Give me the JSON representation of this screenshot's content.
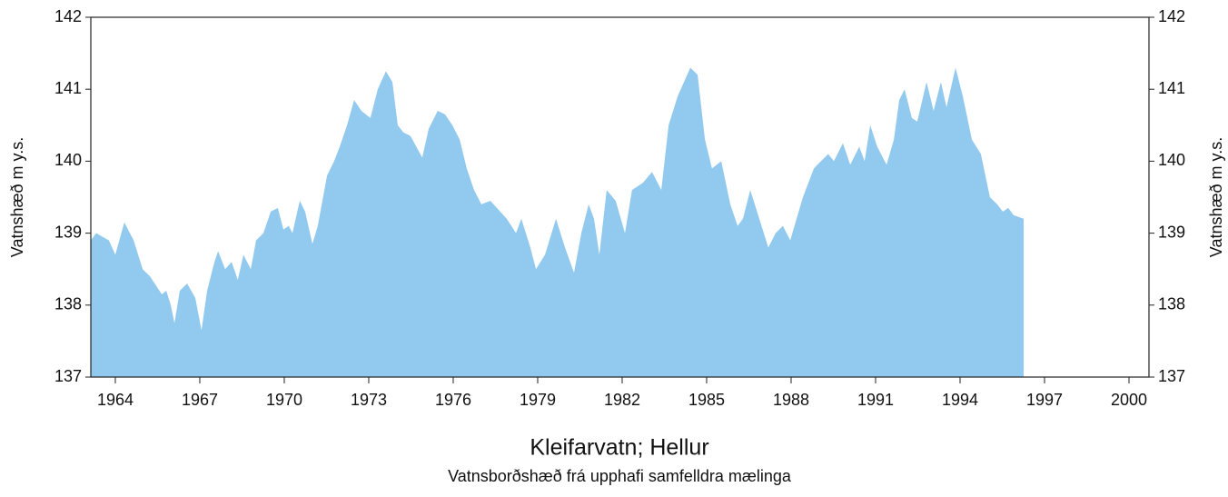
{
  "chart_data": {
    "type": "area",
    "title": "Kleifarvatn; Hellur",
    "subtitle": "Vatnsborðshæð frá upphafi samfelldra mælinga",
    "y_label": "Vatnshæð  m y.s.",
    "y2_label": "Vatnshæð  m y.s.",
    "xlim": [
      1963.13,
      2000.71
    ],
    "xticks": [
      1964,
      1967,
      1970,
      1973,
      1976,
      1979,
      1982,
      1985,
      1988,
      1991,
      1994,
      1997,
      2000
    ],
    "ylim": [
      137,
      142
    ],
    "yticks": [
      137,
      138,
      139,
      140,
      141,
      142
    ],
    "y2lim": [
      137,
      142
    ],
    "y2ticks": [
      137,
      138,
      139,
      140,
      141,
      142
    ],
    "color": "#92c9ee",
    "x": [
      1963.13,
      1963.32,
      1963.77,
      1964.0,
      1964.32,
      1964.65,
      1964.97,
      1965.23,
      1965.65,
      1965.81,
      1965.97,
      1966.1,
      1966.29,
      1966.55,
      1966.84,
      1967.06,
      1967.26,
      1967.52,
      1967.65,
      1967.9,
      1968.13,
      1968.35,
      1968.55,
      1968.81,
      1969.0,
      1969.26,
      1969.52,
      1969.77,
      1969.97,
      1970.16,
      1970.29,
      1970.55,
      1970.74,
      1971.0,
      1971.19,
      1971.52,
      1971.77,
      1971.97,
      1972.23,
      1972.48,
      1972.74,
      1973.06,
      1973.32,
      1973.61,
      1973.84,
      1974.03,
      1974.23,
      1974.48,
      1974.9,
      1975.13,
      1975.45,
      1975.71,
      1975.97,
      1976.23,
      1976.48,
      1976.74,
      1977.0,
      1977.32,
      1977.9,
      1978.23,
      1978.42,
      1978.74,
      1978.94,
      1979.26,
      1979.65,
      1979.97,
      1980.29,
      1980.55,
      1980.81,
      1981.0,
      1981.19,
      1981.45,
      1981.77,
      1982.1,
      1982.35,
      1982.74,
      1983.06,
      1983.39,
      1983.65,
      1983.97,
      1984.42,
      1984.68,
      1984.94,
      1985.19,
      1985.52,
      1985.84,
      1986.1,
      1986.29,
      1986.55,
      1986.87,
      1987.19,
      1987.45,
      1987.71,
      1987.97,
      1988.42,
      1988.81,
      1989.06,
      1989.32,
      1989.52,
      1989.84,
      1990.1,
      1990.42,
      1990.61,
      1990.81,
      1991.06,
      1991.39,
      1991.65,
      1991.84,
      1992.03,
      1992.29,
      1992.48,
      1992.81,
      1993.06,
      1993.32,
      1993.52,
      1993.84,
      1994.1,
      1994.42,
      1994.74,
      1995.06,
      1995.32,
      1995.52,
      1995.71,
      1995.9,
      1996.26
    ],
    "values": [
      138.9,
      139.0,
      138.9,
      138.7,
      139.15,
      138.9,
      138.5,
      138.4,
      138.15,
      138.2,
      138.0,
      137.75,
      138.2,
      138.3,
      138.1,
      137.65,
      138.2,
      138.6,
      138.75,
      138.5,
      138.6,
      138.35,
      138.7,
      138.5,
      138.9,
      139.0,
      139.3,
      139.35,
      139.05,
      139.1,
      139.0,
      139.45,
      139.3,
      138.85,
      139.1,
      139.8,
      140.0,
      140.2,
      140.5,
      140.85,
      140.7,
      140.6,
      141.0,
      141.25,
      141.1,
      140.5,
      140.4,
      140.35,
      140.05,
      140.45,
      140.7,
      140.65,
      140.5,
      140.3,
      139.9,
      139.6,
      139.4,
      139.45,
      139.2,
      139.0,
      139.2,
      138.8,
      138.5,
      138.7,
      139.2,
      138.8,
      138.45,
      139.0,
      139.4,
      139.2,
      138.7,
      139.6,
      139.45,
      139.0,
      139.6,
      139.7,
      139.85,
      139.6,
      140.5,
      140.9,
      141.3,
      141.2,
      140.3,
      139.9,
      140.0,
      139.4,
      139.1,
      139.2,
      139.6,
      139.2,
      138.8,
      139.0,
      139.1,
      138.9,
      139.5,
      139.9,
      140.0,
      140.1,
      140.0,
      140.25,
      139.95,
      140.2,
      140.0,
      140.5,
      140.2,
      139.95,
      140.3,
      140.85,
      141.0,
      140.6,
      140.55,
      141.1,
      140.7,
      141.1,
      140.75,
      141.3,
      140.9,
      140.3,
      140.1,
      139.5,
      139.4,
      139.3,
      139.35,
      139.25,
      139.2
    ]
  }
}
